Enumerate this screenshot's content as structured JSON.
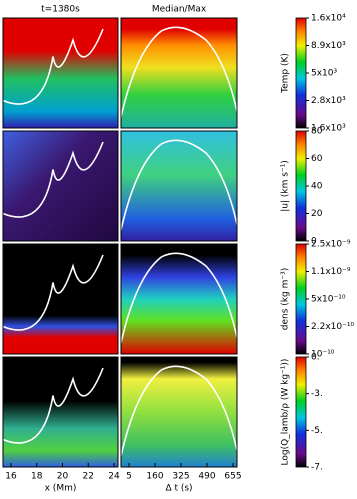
{
  "titles": [
    "t=1380s",
    "Median/Max"
  ],
  "x_axes": [
    {
      "ticks": [
        "16",
        "18",
        "20",
        "22",
        "24"
      ],
      "label": "x (Mm)"
    },
    {
      "ticks": [
        "5",
        "160",
        "325",
        "490",
        "655"
      ],
      "label": "Δ t (s)"
    }
  ],
  "colorbars": [
    {
      "label": "Temp (K)",
      "ticks": [
        "1.6x10⁴",
        "8.9x10³",
        "5x10³",
        "2.8x10³",
        "1.6x10³"
      ]
    },
    {
      "label": "|u| (km s⁻¹)",
      "ticks": [
        "80",
        "60",
        "40",
        "20",
        "0"
      ]
    },
    {
      "label": "dens (kg m⁻³)",
      "ticks": [
        "2.5x10⁻⁹",
        "1.1x10⁻⁹",
        "5x10⁻¹⁰",
        "2.2x10⁻¹⁰",
        "10⁻¹⁰"
      ]
    },
    {
      "label": "Log(Q_lamb/ρ (W kg⁻¹))",
      "ticks": [
        "0.",
        "-3.",
        "-5.",
        "-7."
      ]
    }
  ]
}
